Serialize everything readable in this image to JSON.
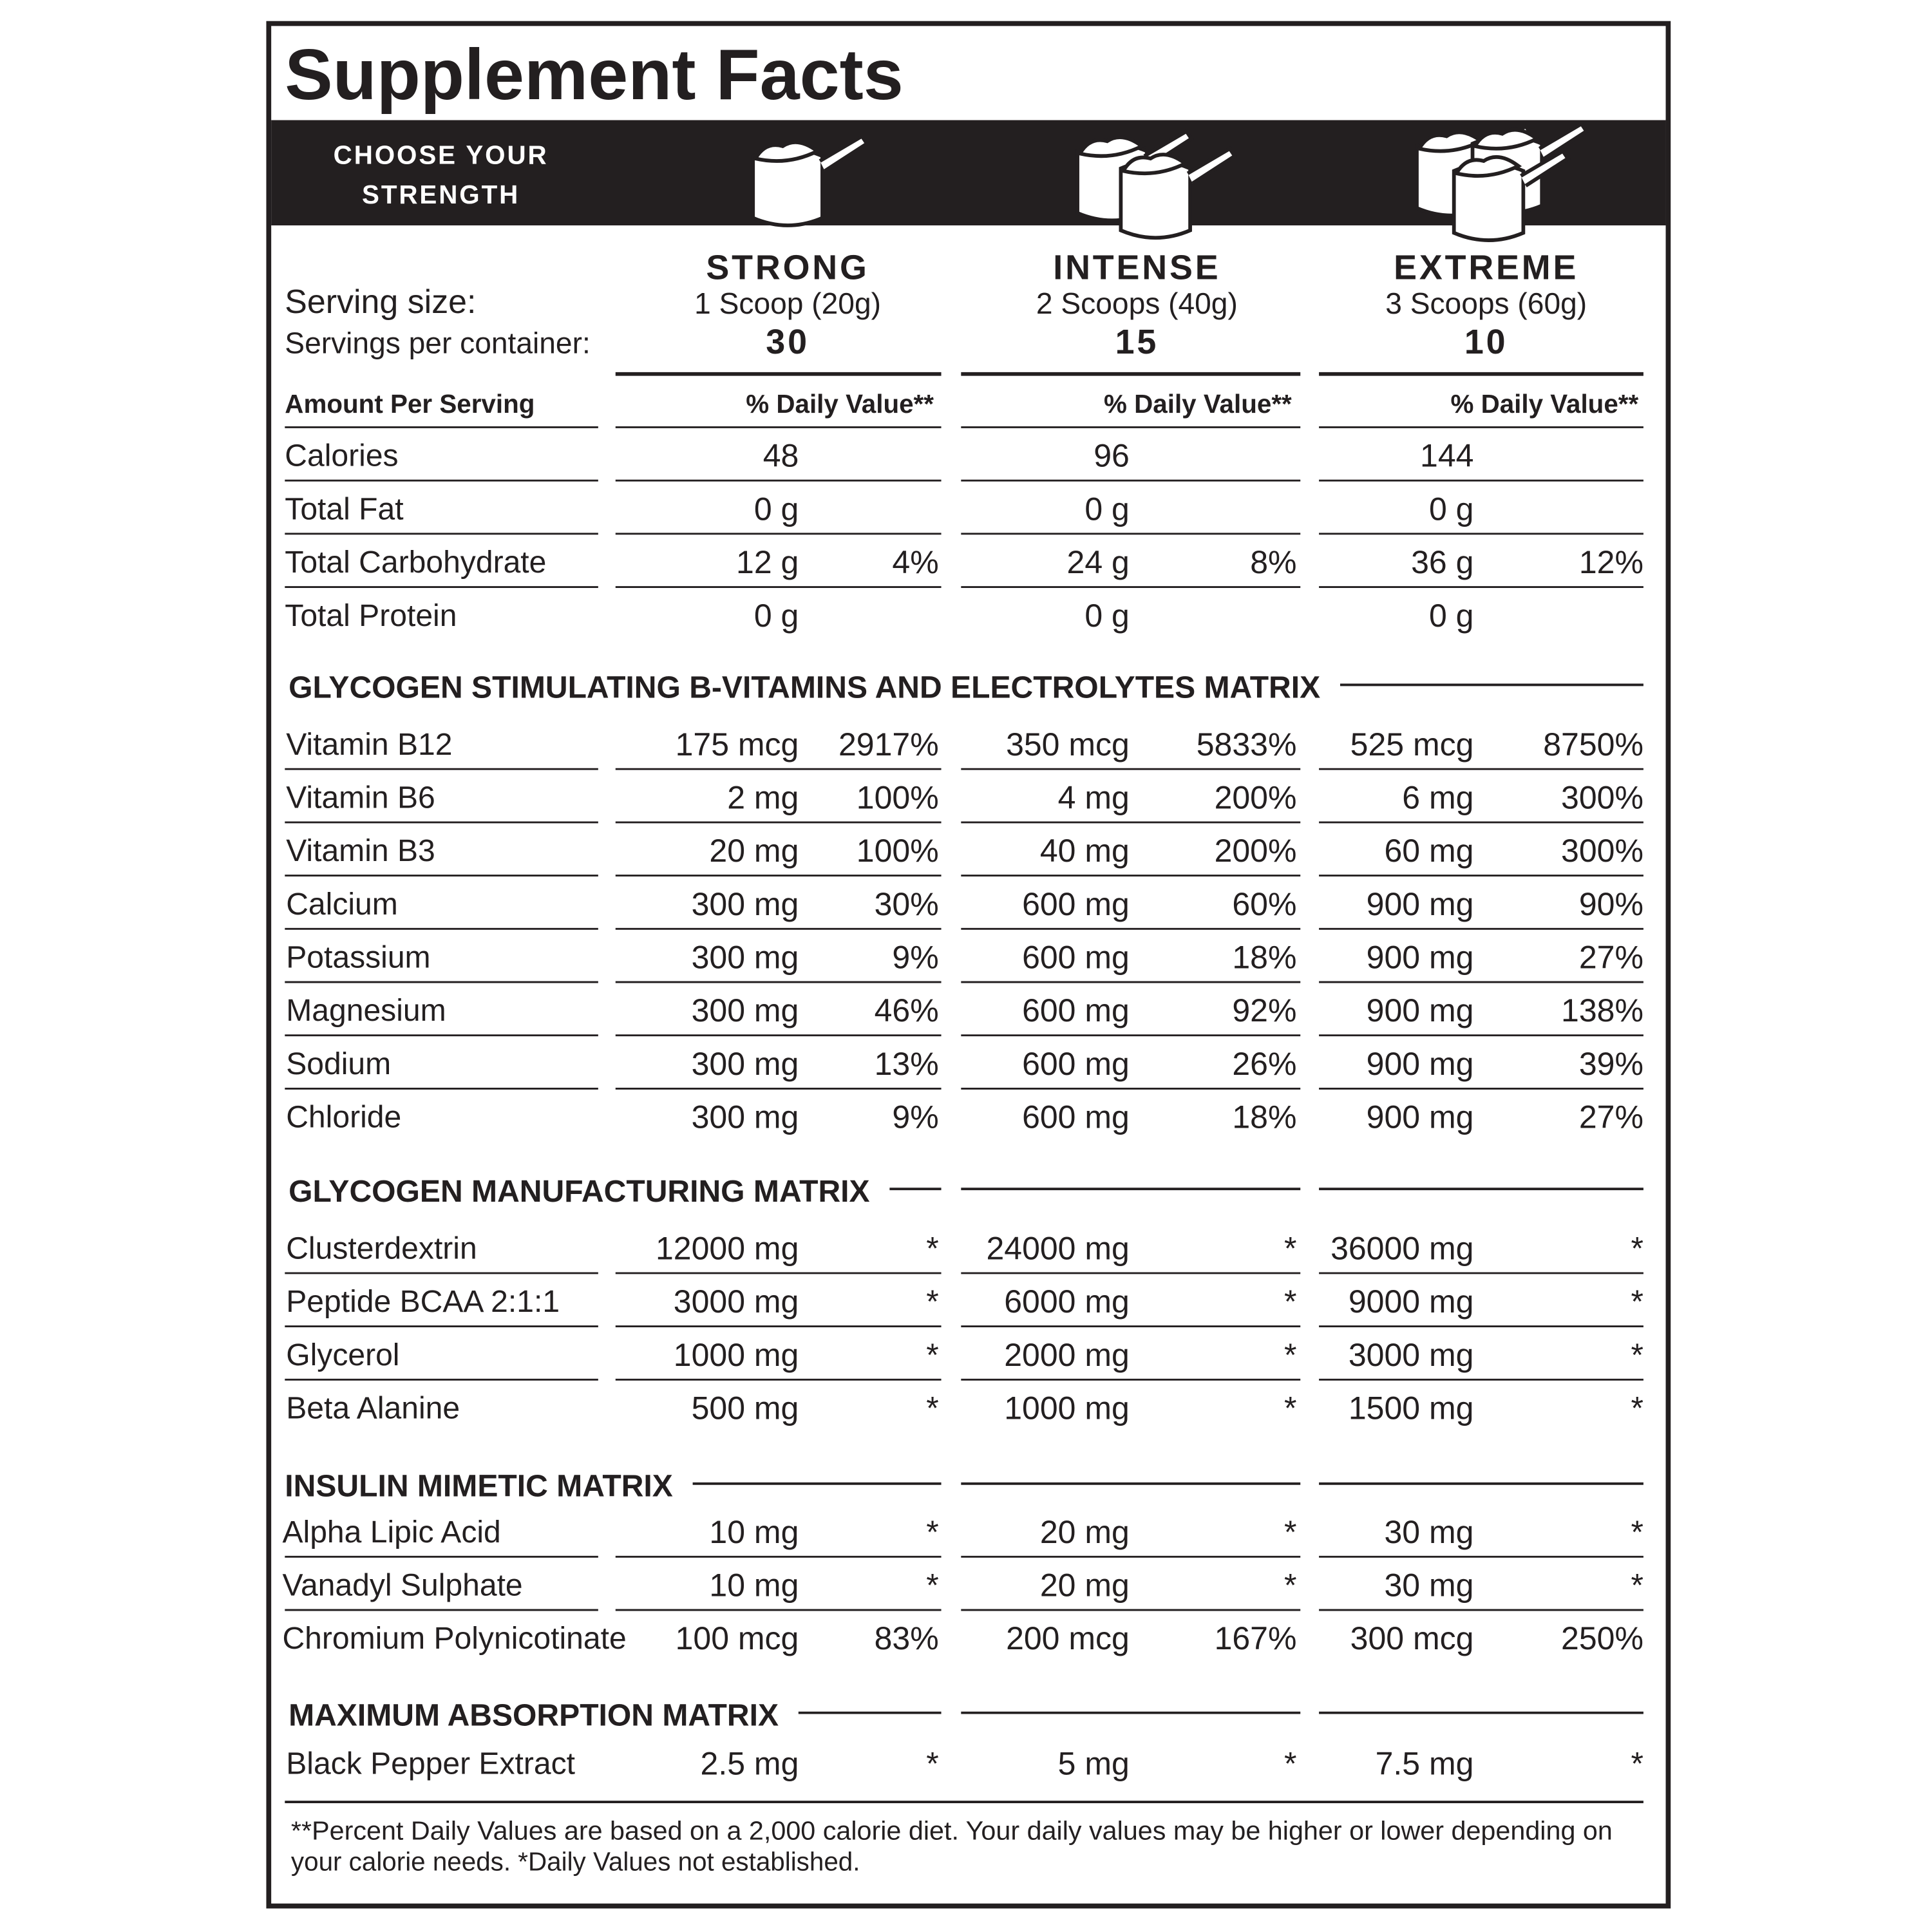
{
  "title": "Supplement Facts",
  "banner": [
    "CHOOSE YOUR",
    "STRENGTH"
  ],
  "serving_labels": {
    "serving_size": "Serving size:",
    "servings": "Servings per container:"
  },
  "columns": [
    {
      "name": "STRONG",
      "serving_size": "1 Scoop (20g)",
      "servings": 30
    },
    {
      "name": "INTENSE",
      "serving_size": "2 Scoops (40g)",
      "servings": 15
    },
    {
      "name": "EXTREME",
      "serving_size": "3 Scoops (60g)",
      "servings": 10
    }
  ],
  "header": {
    "amount": "Amount Per Serving",
    "daily_value": "% Daily Value**"
  },
  "basic_rows": [
    {
      "name": "Calories",
      "cells": [
        {
          "amount": "48"
        },
        {
          "amount": "96"
        },
        {
          "amount": "144"
        }
      ]
    },
    {
      "name": "Total Fat",
      "cells": [
        {
          "amount": "0 g"
        },
        {
          "amount": "0 g"
        },
        {
          "amount": "0 g"
        }
      ]
    },
    {
      "name": "Total Carbohydrate",
      "cells": [
        {
          "amount": "12 g",
          "dv": "4%"
        },
        {
          "amount": "24 g",
          "dv": "8%"
        },
        {
          "amount": "36 g",
          "dv": "12%"
        }
      ]
    },
    {
      "name": "Total Protein",
      "cells": [
        {
          "amount": "0 g"
        },
        {
          "amount": "0 g"
        },
        {
          "amount": "0 g"
        }
      ]
    }
  ],
  "sections": [
    {
      "title": "GLYCOGEN STIMULATING B-VITAMINS AND ELECTROLYTES MATRIX",
      "rows": [
        {
          "name": "Vitamin B12",
          "cells": [
            {
              "amount": "175 mcg",
              "dv": "2917%"
            },
            {
              "amount": "350 mcg",
              "dv": "5833%"
            },
            {
              "amount": "525 mcg",
              "dv": "8750%"
            }
          ]
        },
        {
          "name": "Vitamin B6",
          "cells": [
            {
              "amount": "2 mg",
              "dv": "100%"
            },
            {
              "amount": "4 mg",
              "dv": "200%"
            },
            {
              "amount": "6 mg",
              "dv": "300%"
            }
          ]
        },
        {
          "name": "Vitamin B3",
          "cells": [
            {
              "amount": "20 mg",
              "dv": "100%"
            },
            {
              "amount": "40 mg",
              "dv": "200%"
            },
            {
              "amount": "60 mg",
              "dv": "300%"
            }
          ]
        },
        {
          "name": "Calcium",
          "cells": [
            {
              "amount": "300 mg",
              "dv": "30%"
            },
            {
              "amount": "600 mg",
              "dv": "60%"
            },
            {
              "amount": "900 mg",
              "dv": "90%"
            }
          ]
        },
        {
          "name": "Potassium",
          "cells": [
            {
              "amount": "300 mg",
              "dv": "9%"
            },
            {
              "amount": "600 mg",
              "dv": "18%"
            },
            {
              "amount": "900 mg",
              "dv": "27%"
            }
          ]
        },
        {
          "name": "Magnesium",
          "cells": [
            {
              "amount": "300 mg",
              "dv": "46%"
            },
            {
              "amount": "600 mg",
              "dv": "92%"
            },
            {
              "amount": "900 mg",
              "dv": "138%"
            }
          ]
        },
        {
          "name": "Sodium",
          "cells": [
            {
              "amount": "300 mg",
              "dv": "13%"
            },
            {
              "amount": "600 mg",
              "dv": "26%"
            },
            {
              "amount": "900 mg",
              "dv": "39%"
            }
          ]
        },
        {
          "name": "Chloride",
          "cells": [
            {
              "amount": "300 mg",
              "dv": "9%"
            },
            {
              "amount": "600 mg",
              "dv": "18%"
            },
            {
              "amount": "900 mg",
              "dv": "27%"
            }
          ]
        }
      ]
    },
    {
      "title": "GLYCOGEN MANUFACTURING MATRIX",
      "rows": [
        {
          "name": "Clusterdextrin",
          "cells": [
            {
              "amount": "12000 mg",
              "dv": "*"
            },
            {
              "amount": "24000 mg",
              "dv": "*"
            },
            {
              "amount": "36000 mg",
              "dv": "*"
            }
          ]
        },
        {
          "name": "Peptide BCAA 2:1:1",
          "cells": [
            {
              "amount": "3000 mg",
              "dv": "*"
            },
            {
              "amount": "6000 mg",
              "dv": "*"
            },
            {
              "amount": "9000 mg",
              "dv": "*"
            }
          ]
        },
        {
          "name": "Glycerol",
          "cells": [
            {
              "amount": "1000 mg",
              "dv": "*"
            },
            {
              "amount": "2000 mg",
              "dv": "*"
            },
            {
              "amount": "3000 mg",
              "dv": "*"
            }
          ]
        },
        {
          "name": "Beta Alanine",
          "cells": [
            {
              "amount": "500 mg",
              "dv": "*"
            },
            {
              "amount": "1000 mg",
              "dv": "*"
            },
            {
              "amount": "1500 mg",
              "dv": "*"
            }
          ]
        }
      ]
    },
    {
      "title": "INSULIN MIMETIC MATRIX",
      "rows": [
        {
          "name": "Alpha Lipic Acid",
          "cells": [
            {
              "amount": "10 mg",
              "dv": "*"
            },
            {
              "amount": "20 mg",
              "dv": "*"
            },
            {
              "amount": "30 mg",
              "dv": "*"
            }
          ]
        },
        {
          "name": "Vanadyl Sulphate",
          "cells": [
            {
              "amount": "10 mg",
              "dv": "*"
            },
            {
              "amount": "20 mg",
              "dv": "*"
            },
            {
              "amount": "30 mg",
              "dv": "*"
            }
          ]
        },
        {
          "name": "Chromium Polynicotinate",
          "cells": [
            {
              "amount": "100 mcg",
              "dv": "83%"
            },
            {
              "amount": "200 mcg",
              "dv": "167%"
            },
            {
              "amount": "300 mcg",
              "dv": "250%"
            }
          ]
        }
      ]
    },
    {
      "title": "MAXIMUM ABSORPTION MATRIX",
      "rows": [
        {
          "name": "Black Pepper Extract",
          "cells": [
            {
              "amount": "2.5 mg",
              "dv": "*"
            },
            {
              "amount": "5 mg",
              "dv": "*"
            },
            {
              "amount": "7.5 mg",
              "dv": "*"
            }
          ]
        }
      ]
    }
  ],
  "footnote": [
    "**Percent Daily Values are based on a 2,000 calorie diet. Your daily values may be higher or lower depending on",
    "your calorie needs. *Daily Values not established."
  ]
}
